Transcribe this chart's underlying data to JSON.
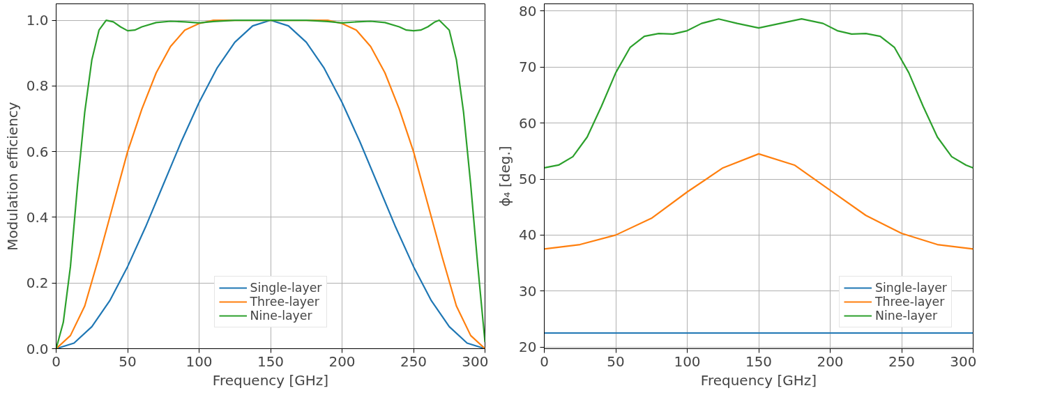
{
  "chart_data": [
    {
      "type": "line",
      "xlabel": "Frequency [GHz]",
      "ylabel": "Modulation efficiency",
      "xlim": [
        0,
        300
      ],
      "ylim": [
        0,
        1.05
      ],
      "xticks": [
        0,
        50,
        100,
        150,
        200,
        250,
        300
      ],
      "yticks": [
        {
          "value": 0,
          "label": "0.0"
        },
        {
          "value": 0.2,
          "label": "0.2"
        },
        {
          "value": 0.4,
          "label": "0.4"
        },
        {
          "value": 0.6,
          "label": "0.6"
        },
        {
          "value": 0.8,
          "label": "0.8"
        },
        {
          "value": 1,
          "label": "1.0"
        }
      ],
      "grid": true,
      "legend": "bottom",
      "line_style": "solid",
      "series": [
        {
          "name": "Single-layer",
          "color": "#1f77b4",
          "x": [
            0,
            12.5,
            25,
            37.5,
            50,
            62.5,
            75,
            87.5,
            100,
            112.5,
            125,
            137.5,
            150,
            162.5,
            175,
            187.5,
            200,
            212.5,
            225,
            237.5,
            250,
            262.5,
            275,
            287.5,
            300
          ],
          "values": [
            0,
            0.017,
            0.067,
            0.146,
            0.25,
            0.37,
            0.5,
            0.63,
            0.75,
            0.854,
            0.933,
            0.983,
            1,
            0.983,
            0.933,
            0.854,
            0.75,
            0.63,
            0.5,
            0.37,
            0.25,
            0.146,
            0.067,
            0.017,
            0
          ]
        },
        {
          "name": "Three-layer",
          "color": "#ff7f0e",
          "x": [
            0,
            10,
            20,
            30,
            40,
            50,
            60,
            70,
            80,
            90,
            100,
            110,
            150,
            190,
            200,
            210,
            220,
            230,
            240,
            250,
            260,
            270,
            280,
            290,
            300
          ],
          "values": [
            0,
            0.04,
            0.13,
            0.28,
            0.44,
            0.6,
            0.73,
            0.84,
            0.92,
            0.97,
            0.99,
            1,
            1,
            1,
            0.99,
            0.97,
            0.92,
            0.84,
            0.73,
            0.6,
            0.44,
            0.28,
            0.13,
            0.04,
            0
          ]
        },
        {
          "name": "Nine-layer",
          "color": "#2ca02c",
          "x": [
            0,
            5,
            10,
            15,
            20,
            25,
            30,
            35,
            40,
            45,
            50,
            55,
            60,
            70,
            80,
            90,
            100,
            110,
            125,
            150,
            175,
            190,
            200,
            210,
            220,
            230,
            240,
            245,
            250,
            255,
            260,
            265,
            268,
            275,
            280,
            285,
            290,
            295,
            300
          ],
          "values": [
            0,
            0.08,
            0.25,
            0.5,
            0.72,
            0.88,
            0.97,
            1,
            0.995,
            0.98,
            0.968,
            0.97,
            0.98,
            0.993,
            0.997,
            0.995,
            0.992,
            0.996,
            1,
            1,
            1,
            0.996,
            0.992,
            0.995,
            0.997,
            0.993,
            0.98,
            0.97,
            0.968,
            0.97,
            0.98,
            0.995,
            1,
            0.97,
            0.88,
            0.72,
            0.5,
            0.25,
            0.02
          ]
        }
      ]
    },
    {
      "type": "line",
      "xlabel": "Frequency [GHz]",
      "ylabel": "ϕ₄ [deg.]",
      "xlim": [
        0,
        300
      ],
      "ylim": [
        19.7,
        81.3
      ],
      "xticks": [
        0,
        50,
        100,
        150,
        200,
        250,
        300
      ],
      "yticks": [
        20,
        30,
        40,
        50,
        60,
        70,
        80
      ],
      "grid": true,
      "legend": "bottom right",
      "line_style": "solid",
      "series": [
        {
          "name": "Single-layer",
          "color": "#1f77b4",
          "x": [
            0,
            300
          ],
          "values": [
            22.5,
            22.5
          ]
        },
        {
          "name": "Three-layer",
          "color": "#ff7f0e",
          "x": [
            0,
            25,
            50,
            75,
            100,
            125,
            150,
            175,
            200,
            225,
            250,
            275,
            300
          ],
          "values": [
            37.5,
            38.3,
            40,
            43,
            47.7,
            52,
            54.5,
            52.5,
            48,
            43.5,
            40.3,
            38.3,
            37.5
          ]
        },
        {
          "name": "Nine-layer",
          "color": "#2ca02c",
          "x": [
            0,
            10,
            20,
            30,
            40,
            50,
            60,
            70,
            80,
            90,
            100,
            110,
            122,
            135,
            150,
            165,
            180,
            195,
            205,
            215,
            225,
            235,
            245,
            255,
            265,
            275,
            285,
            295,
            300
          ],
          "values": [
            52,
            52.5,
            54,
            57.5,
            63,
            69,
            73.5,
            75.5,
            76,
            75.9,
            76.5,
            77.8,
            78.6,
            77.8,
            77,
            77.8,
            78.6,
            77.8,
            76.5,
            75.9,
            76,
            75.5,
            73.5,
            69,
            63,
            57.5,
            54,
            52.5,
            52
          ]
        }
      ]
    }
  ]
}
